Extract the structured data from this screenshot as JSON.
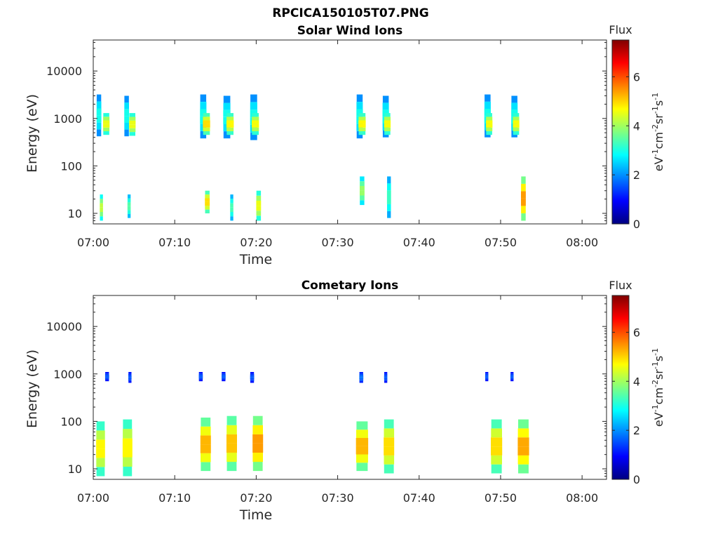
{
  "figure": {
    "title": "RPCICA150105T07.PNG"
  },
  "chart_data": [
    {
      "type": "heatmap",
      "title": "Solar Wind Ions",
      "xlabel": "Time",
      "ylabel": "Energy (eV)",
      "xlim": [
        "07:00",
        "08:03"
      ],
      "xticks": [
        "07:00",
        "07:10",
        "07:20",
        "07:30",
        "07:40",
        "07:50",
        "08:00"
      ],
      "ylim": [
        6,
        45000
      ],
      "yscale": "log",
      "yticks": [
        "10",
        "100",
        "1000",
        "10000"
      ],
      "colorbar": {
        "title": "Flux",
        "label": "eV-1cm-2sr-1s-1",
        "range": [
          0,
          7.5
        ],
        "ticks": [
          "0",
          "2",
          "4",
          "6"
        ],
        "colormap": "jet"
      },
      "grid": false,
      "blobs": [
        {
          "t": 0.7,
          "emin": 420,
          "emax": 3200,
          "dt": 0.6,
          "level": 3.0
        },
        {
          "t": 1.6,
          "emin": 450,
          "emax": 1300,
          "dt": 0.8,
          "level": 4.6
        },
        {
          "t": 4.1,
          "emin": 420,
          "emax": 3000,
          "dt": 0.6,
          "level": 3.0
        },
        {
          "t": 4.8,
          "emin": 430,
          "emax": 1300,
          "dt": 0.8,
          "level": 4.6
        },
        {
          "t": 13.5,
          "emin": 380,
          "emax": 3200,
          "dt": 0.8,
          "level": 3.0
        },
        {
          "t": 13.9,
          "emin": 450,
          "emax": 1300,
          "dt": 0.9,
          "level": 5.0
        },
        {
          "t": 16.4,
          "emin": 380,
          "emax": 3000,
          "dt": 0.9,
          "level": 3.0
        },
        {
          "t": 16.8,
          "emin": 450,
          "emax": 1300,
          "dt": 0.9,
          "level": 4.8
        },
        {
          "t": 19.7,
          "emin": 350,
          "emax": 3200,
          "dt": 0.9,
          "level": 3.0
        },
        {
          "t": 19.9,
          "emin": 450,
          "emax": 1300,
          "dt": 0.9,
          "level": 4.7
        },
        {
          "t": 32.7,
          "emin": 380,
          "emax": 3200,
          "dt": 0.8,
          "level": 3.0
        },
        {
          "t": 33.0,
          "emin": 450,
          "emax": 1300,
          "dt": 0.9,
          "level": 4.8
        },
        {
          "t": 35.9,
          "emin": 400,
          "emax": 3000,
          "dt": 0.8,
          "level": 3.0
        },
        {
          "t": 36.1,
          "emin": 450,
          "emax": 1300,
          "dt": 0.8,
          "level": 4.7
        },
        {
          "t": 48.4,
          "emin": 400,
          "emax": 3200,
          "dt": 0.8,
          "level": 3.0
        },
        {
          "t": 48.6,
          "emin": 450,
          "emax": 1300,
          "dt": 0.8,
          "level": 4.7
        },
        {
          "t": 51.7,
          "emin": 400,
          "emax": 3000,
          "dt": 0.8,
          "level": 3.0
        },
        {
          "t": 51.9,
          "emin": 450,
          "emax": 1300,
          "dt": 0.8,
          "level": 4.7
        },
        {
          "t": 1.0,
          "emin": 7,
          "emax": 25,
          "dt": 0.4,
          "level": 4.3
        },
        {
          "t": 4.4,
          "emin": 8,
          "emax": 25,
          "dt": 0.4,
          "level": 3.5
        },
        {
          "t": 14.0,
          "emin": 10,
          "emax": 30,
          "dt": 0.6,
          "level": 5.0
        },
        {
          "t": 17.0,
          "emin": 7,
          "emax": 25,
          "dt": 0.4,
          "level": 3.4
        },
        {
          "t": 20.3,
          "emin": 7,
          "emax": 30,
          "dt": 0.6,
          "level": 4.6
        },
        {
          "t": 33.0,
          "emin": 15,
          "emax": 60,
          "dt": 0.6,
          "level": 4.0
        },
        {
          "t": 36.3,
          "emin": 8,
          "emax": 60,
          "dt": 0.5,
          "level": 3.3
        },
        {
          "t": 52.8,
          "emin": 7,
          "emax": 60,
          "dt": 0.6,
          "level": 5.5
        }
      ]
    },
    {
      "type": "heatmap",
      "title": "Cometary Ions",
      "xlabel": "Time",
      "ylabel": "Energy (eV)",
      "xlim": [
        "07:00",
        "08:03"
      ],
      "xticks": [
        "07:00",
        "07:10",
        "07:20",
        "07:30",
        "07:40",
        "07:50",
        "08:00"
      ],
      "ylim": [
        6,
        45000
      ],
      "yscale": "log",
      "yticks": [
        "10",
        "100",
        "1000",
        "10000"
      ],
      "colorbar": {
        "title": "Flux",
        "label": "eV-1cm-2sr-1s-1",
        "range": [
          0,
          7.5
        ],
        "ticks": [
          "0",
          "2",
          "4",
          "6"
        ],
        "colormap": "jet"
      },
      "grid": false,
      "blobs": [
        {
          "t": 1.7,
          "emin": 700,
          "emax": 1100,
          "dt": 0.5,
          "level": 1.6
        },
        {
          "t": 4.5,
          "emin": 650,
          "emax": 1100,
          "dt": 0.4,
          "level": 1.6
        },
        {
          "t": 13.2,
          "emin": 700,
          "emax": 1100,
          "dt": 0.5,
          "level": 1.6
        },
        {
          "t": 16.0,
          "emin": 700,
          "emax": 1100,
          "dt": 0.5,
          "level": 1.6
        },
        {
          "t": 19.5,
          "emin": 650,
          "emax": 1100,
          "dt": 0.5,
          "level": 1.6
        },
        {
          "t": 32.9,
          "emin": 650,
          "emax": 1100,
          "dt": 0.5,
          "level": 1.8
        },
        {
          "t": 35.9,
          "emin": 650,
          "emax": 1100,
          "dt": 0.4,
          "level": 1.6
        },
        {
          "t": 48.3,
          "emin": 700,
          "emax": 1100,
          "dt": 0.4,
          "level": 1.6
        },
        {
          "t": 51.4,
          "emin": 700,
          "emax": 1100,
          "dt": 0.4,
          "level": 1.6
        },
        {
          "t": 0.9,
          "emin": 7,
          "emax": 100,
          "dt": 1.1,
          "level": 4.8
        },
        {
          "t": 4.2,
          "emin": 7,
          "emax": 110,
          "dt": 1.2,
          "level": 4.8
        },
        {
          "t": 13.8,
          "emin": 9,
          "emax": 120,
          "dt": 1.3,
          "level": 5.3
        },
        {
          "t": 17.0,
          "emin": 9,
          "emax": 130,
          "dt": 1.3,
          "level": 5.2
        },
        {
          "t": 20.2,
          "emin": 9,
          "emax": 130,
          "dt": 1.3,
          "level": 5.5
        },
        {
          "t": 33.0,
          "emin": 9,
          "emax": 100,
          "dt": 1.5,
          "level": 5.3
        },
        {
          "t": 36.3,
          "emin": 8,
          "emax": 110,
          "dt": 1.3,
          "level": 5.0
        },
        {
          "t": 49.5,
          "emin": 8,
          "emax": 110,
          "dt": 1.4,
          "level": 5.0
        },
        {
          "t": 52.8,
          "emin": 8,
          "emax": 110,
          "dt": 1.4,
          "level": 5.4
        }
      ]
    }
  ]
}
